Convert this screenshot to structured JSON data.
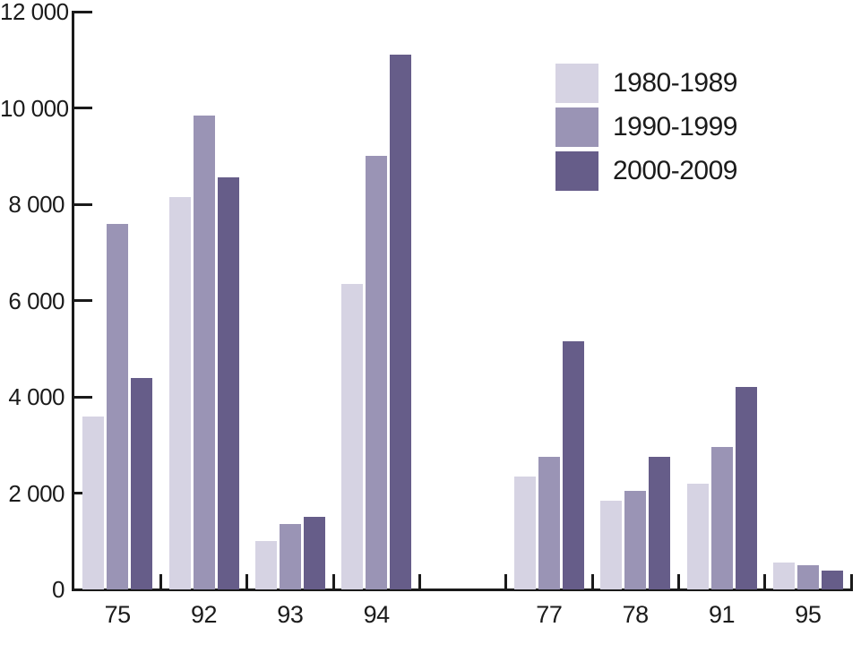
{
  "chart_data": {
    "type": "bar",
    "title": "",
    "xlabel": "",
    "ylabel": "",
    "categories": [
      "75",
      "92",
      "93",
      "94",
      "77",
      "78",
      "91",
      "95"
    ],
    "slot_order": [
      "75",
      "92",
      "93",
      "94",
      "",
      "77",
      "78",
      "91",
      "95"
    ],
    "series": [
      {
        "name": "1980-1989",
        "color": "#d6d3e3",
        "values": [
          3600,
          8150,
          1000,
          6350,
          2350,
          1850,
          2200,
          550
        ]
      },
      {
        "name": "1990-1999",
        "color": "#9a94b5",
        "values": [
          7600,
          9850,
          1350,
          9000,
          2750,
          2050,
          2950,
          500
        ]
      },
      {
        "name": "2000-2009",
        "color": "#665d89",
        "values": [
          4400,
          8550,
          1500,
          11100,
          5150,
          2750,
          4200,
          400
        ]
      }
    ],
    "ylim": [
      0,
      12000
    ],
    "ytick_step": 2000,
    "ytick_labels": [
      "0",
      "2 000",
      "4 000",
      "6 000",
      "8 000",
      "10 000",
      "12 000"
    ],
    "grid": false,
    "legend_position": "top-right"
  },
  "colors": {
    "axis": "#1a1a1a",
    "text": "#1b1b1b",
    "background": "#ffffff"
  }
}
